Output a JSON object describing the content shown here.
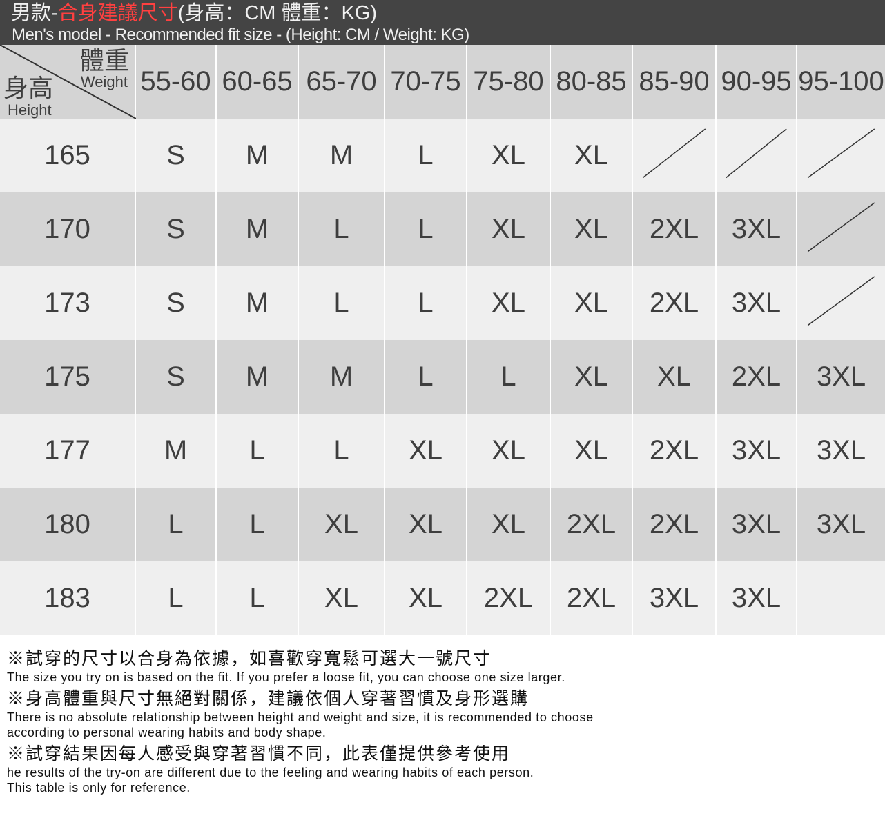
{
  "title": {
    "zh_prefix": "男款-",
    "zh_highlight": "合身建議尺寸",
    "zh_suffix": "(身高：CM  體重：KG)",
    "en": "Men's model - Recommended fit size - (Height: CM / Weight: KG)",
    "highlight_color": "#ff4040"
  },
  "chart_data": {
    "type": "table",
    "corner": {
      "weight_zh": "體重",
      "weight_en": "Weight",
      "height_zh": "身高",
      "height_en": "Height"
    },
    "columns": [
      "55-60",
      "60-65",
      "65-70",
      "70-75",
      "75-80",
      "80-85",
      "85-90",
      "90-95",
      "95-100"
    ],
    "rows": [
      {
        "height": "165",
        "sizes": [
          "S",
          "M",
          "M",
          "L",
          "XL",
          "XL",
          null,
          null,
          null
        ]
      },
      {
        "height": "170",
        "sizes": [
          "S",
          "M",
          "L",
          "L",
          "XL",
          "XL",
          "2XL",
          "3XL",
          null
        ]
      },
      {
        "height": "173",
        "sizes": [
          "S",
          "M",
          "L",
          "L",
          "XL",
          "XL",
          "2XL",
          "3XL",
          null
        ]
      },
      {
        "height": "175",
        "sizes": [
          "S",
          "M",
          "M",
          "L",
          "L",
          "XL",
          "XL",
          "2XL",
          "3XL"
        ]
      },
      {
        "height": "177",
        "sizes": [
          "M",
          "L",
          "L",
          "XL",
          "XL",
          "XL",
          "2XL",
          "3XL",
          "3XL"
        ]
      },
      {
        "height": "180",
        "sizes": [
          "L",
          "L",
          "XL",
          "XL",
          "XL",
          "2XL",
          "2XL",
          "3XL",
          "3XL"
        ]
      },
      {
        "height": "183",
        "sizes": [
          "L",
          "L",
          "XL",
          "XL",
          "2XL",
          "2XL",
          "3XL",
          "3XL",
          ""
        ]
      }
    ],
    "not_available_mark": "diagonal slash"
  },
  "notes": [
    {
      "zh": "※試穿的尺寸以合身為依據，如喜歡穿寬鬆可選大一號尺寸",
      "en": [
        "The size you try on is based on the fit. If you prefer a loose fit, you can choose one size larger."
      ]
    },
    {
      "zh": "※身高體重與尺寸無絕對關係，建議依個人穿著習慣及身形選購",
      "en": [
        "There is no absolute relationship between height and weight and size, it is recommended to choose",
        "according to personal wearing habits and body shape."
      ]
    },
    {
      "zh": "※試穿結果因每人感受與穿著習慣不同，此表僅提供參考使用",
      "en": [
        "he results of the try-on are different due to the feeling and wearing habits of each person.",
        "This table is only for reference."
      ]
    }
  ]
}
